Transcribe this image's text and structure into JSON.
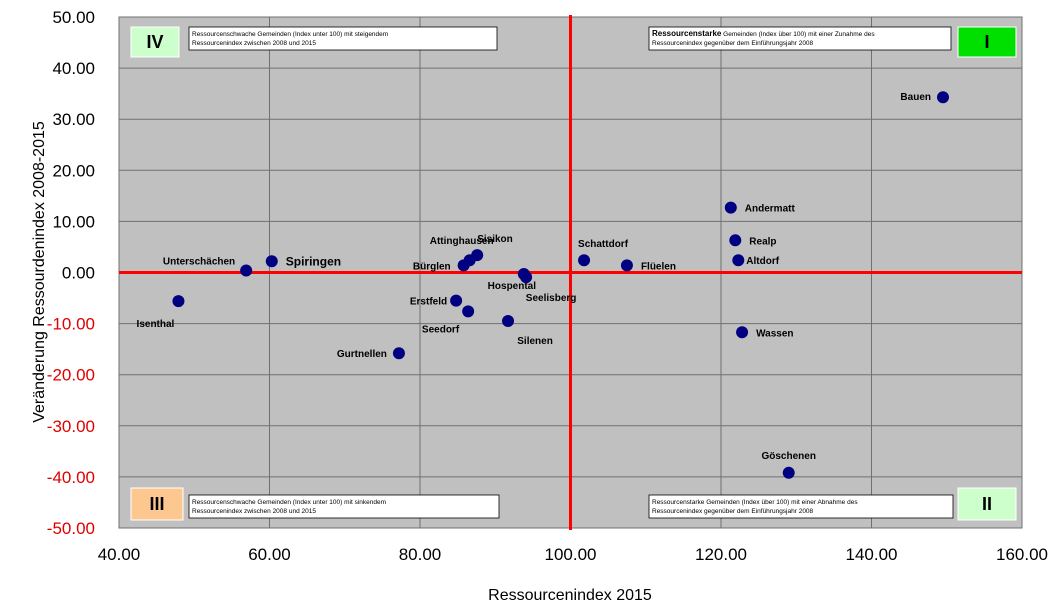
{
  "chart_data": {
    "type": "scatter",
    "title": "",
    "xlabel": "Ressourcenindex 2015",
    "ylabel": "Veränderung Ressourdenindex 2008-2015",
    "xlim": [
      40,
      160
    ],
    "ylim": [
      -50,
      50
    ],
    "x_ticks": [
      "40.00",
      "60.00",
      "80.00",
      "100.00",
      "120.00",
      "140.00",
      "160.00"
    ],
    "y_ticks": [
      "50.00",
      "40.00",
      "30.00",
      "20.00",
      "10.00",
      "0.00",
      "-10.00",
      "-20.00",
      "-30.00",
      "-40.00",
      "-50.00"
    ],
    "grid": true,
    "reference_lines": {
      "x": 100,
      "y": 0
    },
    "colors": {
      "plot_bg": "#c0c0c0",
      "marker": "#000080",
      "reference_line": "#ff0000",
      "negative_tick": "#e00000",
      "quadrant_I": "#00e000",
      "quadrant_II": "#ccffcc",
      "quadrant_III": "#fcc890",
      "quadrant_IV": "#ccffcc"
    },
    "points": [
      {
        "label": "Bauen",
        "x": 149.5,
        "y": 34.3
      },
      {
        "label": "Andermatt",
        "x": 121.3,
        "y": 12.7
      },
      {
        "label": "Realp",
        "x": 121.9,
        "y": 6.3
      },
      {
        "label": "Altdorf",
        "x": 122.3,
        "y": 2.4
      },
      {
        "label": "Flüelen",
        "x": 107.5,
        "y": 1.4
      },
      {
        "label": "Schattdorf",
        "x": 101.8,
        "y": 2.4
      },
      {
        "label": "Wassen",
        "x": 122.8,
        "y": -11.7
      },
      {
        "label": "Göschenen",
        "x": 129.0,
        "y": -39.2
      },
      {
        "label": "Sisikon",
        "x": 87.6,
        "y": 3.4
      },
      {
        "label": "Attinghausen",
        "x": 86.6,
        "y": 2.4
      },
      {
        "label": "Bürglen",
        "x": 85.8,
        "y": 1.4
      },
      {
        "label": "Hospental",
        "x": 93.8,
        "y": -0.3
      },
      {
        "label": "Seelisberg",
        "x": 94.1,
        "y": -0.9
      },
      {
        "label": "Erstfeld",
        "x": 84.8,
        "y": -5.5
      },
      {
        "label": "Seedorf",
        "x": 86.4,
        "y": -7.6
      },
      {
        "label": "Silenen",
        "x": 91.7,
        "y": -9.5
      },
      {
        "label": "Gurtnellen",
        "x": 77.2,
        "y": -15.8
      },
      {
        "label": "Spiringen",
        "x": 60.3,
        "y": 2.2
      },
      {
        "label": "Unterschächen",
        "x": 56.9,
        "y": 0.4
      },
      {
        "label": "Isenthal",
        "x": 47.9,
        "y": -5.6
      }
    ],
    "quadrants": [
      {
        "id": "I",
        "position": "top-right",
        "text_bold": "Ressourcenstarke",
        "text": " Gemeinden (Index über 100) mit einer Zunahme des Ressourcenindex gegenüber dem Einführungsjahr 2008"
      },
      {
        "id": "II",
        "position": "bottom-right",
        "text_bold": "",
        "text": "Ressourcenstarke Gemeinden (Index über 100) mit einer Abnahme des Ressourcenindex gegenüber dem Einführungsjahr 2008"
      },
      {
        "id": "III",
        "position": "bottom-left",
        "text_bold": "",
        "text": "Ressourcenschwache Gemeinden (Index unter 100) mit sinkendem Ressourcenindex zwischen 2008 und 2015"
      },
      {
        "id": "IV",
        "position": "top-left",
        "text_bold": "",
        "text": "Ressourcenschwache Gemeinden (Index unter 100) mit steigendem Ressourcenindex zwischen 2008 und 2015"
      }
    ]
  }
}
